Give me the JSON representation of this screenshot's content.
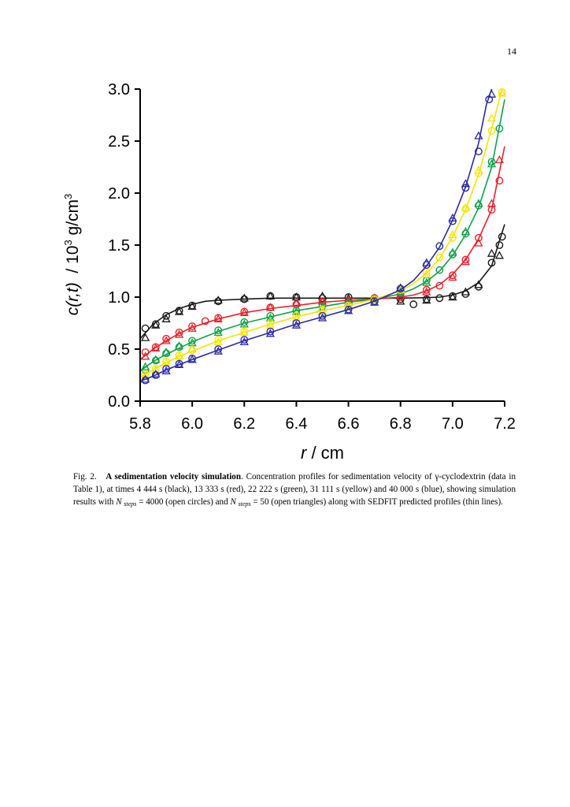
{
  "page": {
    "number": "14"
  },
  "figure": {
    "ylabel": {
      "pre": "c(r,t)",
      "mid": "/ 10",
      "exp1": "3",
      "post": " g/cm",
      "exp2": "3"
    },
    "caption": {
      "label": "Fig. 2.",
      "title": "A sedimentation velocity simulation",
      "text1": ". Concentration profiles for sedimentation velocity of γ-cyclodextrin (data in Table 1), at times 4 444 s (black), 13 333 s (red), 22 222 s (green), 31 111 s (yellow) and 40 000 s (blue), showing simulation results with ",
      "n1": "N",
      "steps1": "steps",
      "text2": " = 4000 (open circles) and ",
      "n2": "N",
      "steps2": "steps",
      "text3": " = 50 (open triangles) along with SEDFIT predicted profiles (thin lines)."
    }
  },
  "chart_data": {
    "type": "scatter",
    "xlabel": "r / cm",
    "ylabel": "c(r,t) / 10^3 g/cm^3",
    "xlim": [
      5.8,
      7.2
    ],
    "ylim": [
      0.0,
      3.0
    ],
    "xticks": [
      "5.8",
      "6.0",
      "6.2",
      "6.4",
      "6.6",
      "6.8",
      "7.0",
      "7.2"
    ],
    "yticks": [
      "0.0",
      "0.5",
      "1.0",
      "1.5",
      "2.0",
      "2.5",
      "3.0"
    ],
    "grid": false,
    "legend": "none",
    "marker_types": [
      "open circles",
      "open triangles",
      "thin lines"
    ],
    "series": [
      {
        "time": "4 444 s",
        "color": "#1a1a1a",
        "line": [
          [
            5.8,
            0.6
          ],
          [
            5.85,
            0.74
          ],
          [
            5.9,
            0.83
          ],
          [
            5.95,
            0.89
          ],
          [
            6.0,
            0.93
          ],
          [
            6.05,
            0.96
          ],
          [
            6.1,
            0.97
          ],
          [
            6.2,
            0.98
          ],
          [
            6.3,
            0.99
          ],
          [
            6.4,
            0.99
          ],
          [
            6.5,
            0.99
          ],
          [
            6.6,
            0.99
          ],
          [
            6.7,
            0.99
          ],
          [
            6.8,
            0.99
          ],
          [
            6.9,
            0.995
          ],
          [
            6.95,
            1.0
          ],
          [
            7.0,
            1.02
          ],
          [
            7.05,
            1.06
          ],
          [
            7.1,
            1.14
          ],
          [
            7.15,
            1.3
          ],
          [
            7.2,
            1.7
          ]
        ],
        "circles": [
          [
            5.82,
            0.7
          ],
          [
            5.86,
            0.74
          ],
          [
            5.9,
            0.82
          ],
          [
            5.95,
            0.87
          ],
          [
            6.0,
            0.92
          ],
          [
            6.1,
            0.96
          ],
          [
            6.2,
            0.98
          ],
          [
            6.3,
            1.01
          ],
          [
            6.4,
            1.0
          ],
          [
            6.5,
            0.99
          ],
          [
            6.6,
            1.0
          ],
          [
            6.7,
            0.99
          ],
          [
            6.8,
            0.98
          ],
          [
            6.85,
            0.93
          ],
          [
            6.9,
            0.98
          ],
          [
            6.95,
            0.99
          ],
          [
            7.0,
            1.01
          ],
          [
            7.05,
            1.03
          ],
          [
            7.1,
            1.1
          ],
          [
            7.15,
            1.33
          ],
          [
            7.18,
            1.5
          ],
          [
            7.19,
            1.58
          ]
        ],
        "triangles": [
          [
            5.82,
            0.61
          ],
          [
            5.86,
            0.73
          ],
          [
            5.9,
            0.79
          ],
          [
            5.95,
            0.86
          ],
          [
            6.0,
            0.91
          ],
          [
            6.1,
            0.97
          ],
          [
            6.2,
            0.99
          ],
          [
            6.3,
            1.01
          ],
          [
            6.4,
            1.0
          ],
          [
            6.5,
            1.01
          ],
          [
            6.6,
            0.99
          ],
          [
            6.7,
            0.99
          ],
          [
            6.8,
            0.96
          ],
          [
            6.9,
            0.97
          ],
          [
            7.0,
            1.0
          ],
          [
            7.05,
            1.05
          ],
          [
            7.1,
            1.12
          ],
          [
            7.15,
            1.42
          ],
          [
            7.18,
            1.4
          ]
        ]
      },
      {
        "time": "13 333 s",
        "color": "#e8202a",
        "line": [
          [
            5.8,
            0.4
          ],
          [
            5.85,
            0.5
          ],
          [
            5.9,
            0.58
          ],
          [
            5.95,
            0.65
          ],
          [
            6.0,
            0.71
          ],
          [
            6.1,
            0.79
          ],
          [
            6.2,
            0.85
          ],
          [
            6.3,
            0.89
          ],
          [
            6.4,
            0.92
          ],
          [
            6.5,
            0.95
          ],
          [
            6.6,
            0.97
          ],
          [
            6.7,
            0.98
          ],
          [
            6.8,
            1.0
          ],
          [
            6.85,
            1.02
          ],
          [
            6.9,
            1.06
          ],
          [
            6.95,
            1.12
          ],
          [
            7.0,
            1.22
          ],
          [
            7.05,
            1.36
          ],
          [
            7.1,
            1.56
          ],
          [
            7.15,
            1.84
          ],
          [
            7.2,
            2.45
          ]
        ],
        "circles": [
          [
            5.82,
            0.47
          ],
          [
            5.86,
            0.52
          ],
          [
            5.9,
            0.6
          ],
          [
            5.95,
            0.66
          ],
          [
            6.0,
            0.72
          ],
          [
            6.05,
            0.77
          ],
          [
            6.1,
            0.8
          ],
          [
            6.2,
            0.86
          ],
          [
            6.3,
            0.9
          ],
          [
            6.4,
            0.93
          ],
          [
            6.5,
            0.96
          ],
          [
            6.6,
            0.97
          ],
          [
            6.7,
            0.99
          ],
          [
            6.8,
            1.0
          ],
          [
            6.9,
            1.07
          ],
          [
            6.95,
            1.11
          ],
          [
            7.0,
            1.21
          ],
          [
            7.05,
            1.36
          ],
          [
            7.1,
            1.57
          ],
          [
            7.15,
            1.84
          ],
          [
            7.18,
            2.12
          ]
        ],
        "triangles": [
          [
            5.82,
            0.43
          ],
          [
            5.86,
            0.51
          ],
          [
            5.9,
            0.58
          ],
          [
            5.95,
            0.64
          ],
          [
            6.0,
            0.7
          ],
          [
            6.1,
            0.79
          ],
          [
            6.2,
            0.85
          ],
          [
            6.3,
            0.9
          ],
          [
            6.4,
            0.94
          ],
          [
            6.5,
            0.96
          ],
          [
            6.6,
            0.97
          ],
          [
            6.7,
            0.99
          ],
          [
            6.8,
            1.01
          ],
          [
            6.9,
            1.05
          ],
          [
            7.0,
            1.19
          ],
          [
            7.05,
            1.34
          ],
          [
            7.1,
            1.52
          ],
          [
            7.15,
            1.9
          ],
          [
            7.18,
            2.32
          ]
        ]
      },
      {
        "time": "22 222 s",
        "color": "#11a04a",
        "line": [
          [
            5.8,
            0.29
          ],
          [
            5.85,
            0.38
          ],
          [
            5.9,
            0.45
          ],
          [
            5.95,
            0.51
          ],
          [
            6.0,
            0.57
          ],
          [
            6.1,
            0.67
          ],
          [
            6.2,
            0.75
          ],
          [
            6.3,
            0.81
          ],
          [
            6.4,
            0.87
          ],
          [
            6.5,
            0.91
          ],
          [
            6.6,
            0.95
          ],
          [
            6.7,
            0.98
          ],
          [
            6.8,
            1.03
          ],
          [
            6.85,
            1.08
          ],
          [
            6.9,
            1.15
          ],
          [
            6.95,
            1.25
          ],
          [
            7.0,
            1.4
          ],
          [
            7.05,
            1.6
          ],
          [
            7.1,
            1.86
          ],
          [
            7.15,
            2.25
          ],
          [
            7.2,
            2.9
          ]
        ],
        "circles": [
          [
            5.82,
            0.3
          ],
          [
            5.86,
            0.39
          ],
          [
            5.9,
            0.46
          ],
          [
            5.95,
            0.52
          ],
          [
            6.0,
            0.58
          ],
          [
            6.1,
            0.68
          ],
          [
            6.2,
            0.76
          ],
          [
            6.3,
            0.82
          ],
          [
            6.4,
            0.87
          ],
          [
            6.5,
            0.91
          ],
          [
            6.6,
            0.94
          ],
          [
            6.7,
            0.98
          ],
          [
            6.8,
            1.04
          ],
          [
            6.9,
            1.16
          ],
          [
            6.95,
            1.26
          ],
          [
            7.0,
            1.41
          ],
          [
            7.05,
            1.61
          ],
          [
            7.1,
            1.88
          ],
          [
            7.15,
            2.3
          ],
          [
            7.18,
            2.62
          ]
        ],
        "triangles": [
          [
            5.82,
            0.33
          ],
          [
            5.86,
            0.4
          ],
          [
            5.9,
            0.47
          ],
          [
            5.95,
            0.53
          ],
          [
            6.0,
            0.56
          ],
          [
            6.1,
            0.66
          ],
          [
            6.2,
            0.74
          ],
          [
            6.3,
            0.8
          ],
          [
            6.4,
            0.86
          ],
          [
            6.5,
            0.9
          ],
          [
            6.6,
            0.95
          ],
          [
            6.7,
            0.98
          ],
          [
            6.8,
            1.05
          ],
          [
            6.9,
            1.14
          ],
          [
            7.0,
            1.43
          ],
          [
            7.05,
            1.63
          ],
          [
            7.1,
            1.9
          ],
          [
            7.15,
            2.28
          ]
        ]
      },
      {
        "time": "31 111 s",
        "color": "#f5e400",
        "line": [
          [
            5.8,
            0.23
          ],
          [
            5.85,
            0.3
          ],
          [
            5.9,
            0.37
          ],
          [
            5.95,
            0.43
          ],
          [
            6.0,
            0.48
          ],
          [
            6.1,
            0.58
          ],
          [
            6.2,
            0.66
          ],
          [
            6.3,
            0.74
          ],
          [
            6.4,
            0.81
          ],
          [
            6.5,
            0.87
          ],
          [
            6.6,
            0.92
          ],
          [
            6.7,
            0.98
          ],
          [
            6.8,
            1.06
          ],
          [
            6.85,
            1.13
          ],
          [
            6.9,
            1.23
          ],
          [
            6.95,
            1.37
          ],
          [
            7.0,
            1.58
          ],
          [
            7.05,
            1.84
          ],
          [
            7.1,
            2.18
          ],
          [
            7.15,
            2.62
          ],
          [
            7.19,
            3.0
          ]
        ],
        "circles": [
          [
            5.82,
            0.26
          ],
          [
            5.86,
            0.31
          ],
          [
            5.9,
            0.38
          ],
          [
            5.95,
            0.44
          ],
          [
            6.0,
            0.49
          ],
          [
            6.1,
            0.59
          ],
          [
            6.2,
            0.67
          ],
          [
            6.3,
            0.75
          ],
          [
            6.4,
            0.82
          ],
          [
            6.5,
            0.88
          ],
          [
            6.6,
            0.92
          ],
          [
            6.7,
            0.98
          ],
          [
            6.8,
            1.07
          ],
          [
            6.9,
            1.24
          ],
          [
            6.95,
            1.38
          ],
          [
            7.0,
            1.57
          ],
          [
            7.05,
            1.85
          ],
          [
            7.1,
            2.19
          ],
          [
            7.15,
            2.6
          ],
          [
            7.19,
            2.97
          ]
        ],
        "triangles": [
          [
            5.82,
            0.24
          ],
          [
            5.86,
            0.3
          ],
          [
            5.9,
            0.37
          ],
          [
            5.95,
            0.43
          ],
          [
            6.0,
            0.5
          ],
          [
            6.1,
            0.57
          ],
          [
            6.2,
            0.66
          ],
          [
            6.3,
            0.73
          ],
          [
            6.4,
            0.8
          ],
          [
            6.5,
            0.86
          ],
          [
            6.6,
            0.91
          ],
          [
            6.7,
            0.97
          ],
          [
            6.8,
            1.07
          ],
          [
            6.9,
            1.22
          ],
          [
            7.0,
            1.6
          ],
          [
            7.05,
            1.86
          ],
          [
            7.1,
            2.22
          ],
          [
            7.15,
            2.72
          ],
          [
            7.19,
            2.96
          ]
        ]
      },
      {
        "time": "40 000 s",
        "color": "#2a2aa8",
        "line": [
          [
            5.8,
            0.19
          ],
          [
            5.85,
            0.24
          ],
          [
            5.9,
            0.3
          ],
          [
            5.95,
            0.35
          ],
          [
            6.0,
            0.4
          ],
          [
            6.1,
            0.49
          ],
          [
            6.2,
            0.58
          ],
          [
            6.3,
            0.66
          ],
          [
            6.4,
            0.74
          ],
          [
            6.5,
            0.81
          ],
          [
            6.6,
            0.88
          ],
          [
            6.7,
            0.96
          ],
          [
            6.8,
            1.07
          ],
          [
            6.85,
            1.16
          ],
          [
            6.9,
            1.3
          ],
          [
            6.95,
            1.48
          ],
          [
            7.0,
            1.74
          ],
          [
            7.05,
            2.06
          ],
          [
            7.1,
            2.48
          ],
          [
            7.13,
            2.85
          ],
          [
            7.15,
            3.0
          ]
        ],
        "circles": [
          [
            5.82,
            0.2
          ],
          [
            5.86,
            0.25
          ],
          [
            5.9,
            0.31
          ],
          [
            5.95,
            0.36
          ],
          [
            6.0,
            0.41
          ],
          [
            6.1,
            0.5
          ],
          [
            6.2,
            0.59
          ],
          [
            6.3,
            0.67
          ],
          [
            6.4,
            0.75
          ],
          [
            6.5,
            0.82
          ],
          [
            6.6,
            0.88
          ],
          [
            6.7,
            0.96
          ],
          [
            6.8,
            1.08
          ],
          [
            6.9,
            1.31
          ],
          [
            6.95,
            1.49
          ],
          [
            7.0,
            1.73
          ],
          [
            7.05,
            2.05
          ],
          [
            7.1,
            2.4
          ],
          [
            7.14,
            2.9
          ]
        ],
        "triangles": [
          [
            5.82,
            0.21
          ],
          [
            5.86,
            0.26
          ],
          [
            5.9,
            0.29
          ],
          [
            5.95,
            0.35
          ],
          [
            6.0,
            0.4
          ],
          [
            6.1,
            0.48
          ],
          [
            6.2,
            0.57
          ],
          [
            6.3,
            0.65
          ],
          [
            6.4,
            0.73
          ],
          [
            6.5,
            0.8
          ],
          [
            6.6,
            0.87
          ],
          [
            6.7,
            0.95
          ],
          [
            6.8,
            1.09
          ],
          [
            6.9,
            1.33
          ],
          [
            7.0,
            1.76
          ],
          [
            7.05,
            2.09
          ],
          [
            7.1,
            2.55
          ],
          [
            7.15,
            2.95
          ]
        ]
      }
    ]
  }
}
